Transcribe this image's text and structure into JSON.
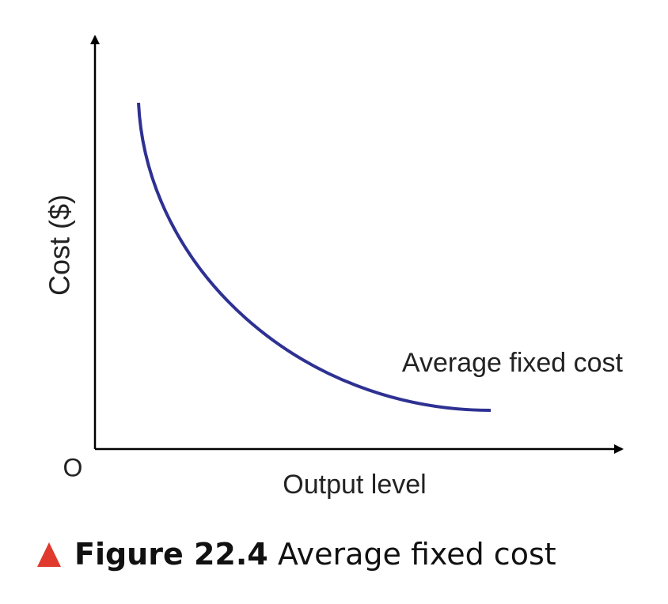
{
  "axes": {
    "y_label": "Cost ($)",
    "x_label": "Output level",
    "origin": "O"
  },
  "curve": {
    "label": "Average fixed cost"
  },
  "figure": {
    "label": "Figure 22.4",
    "caption": "Average fixed cost"
  }
}
